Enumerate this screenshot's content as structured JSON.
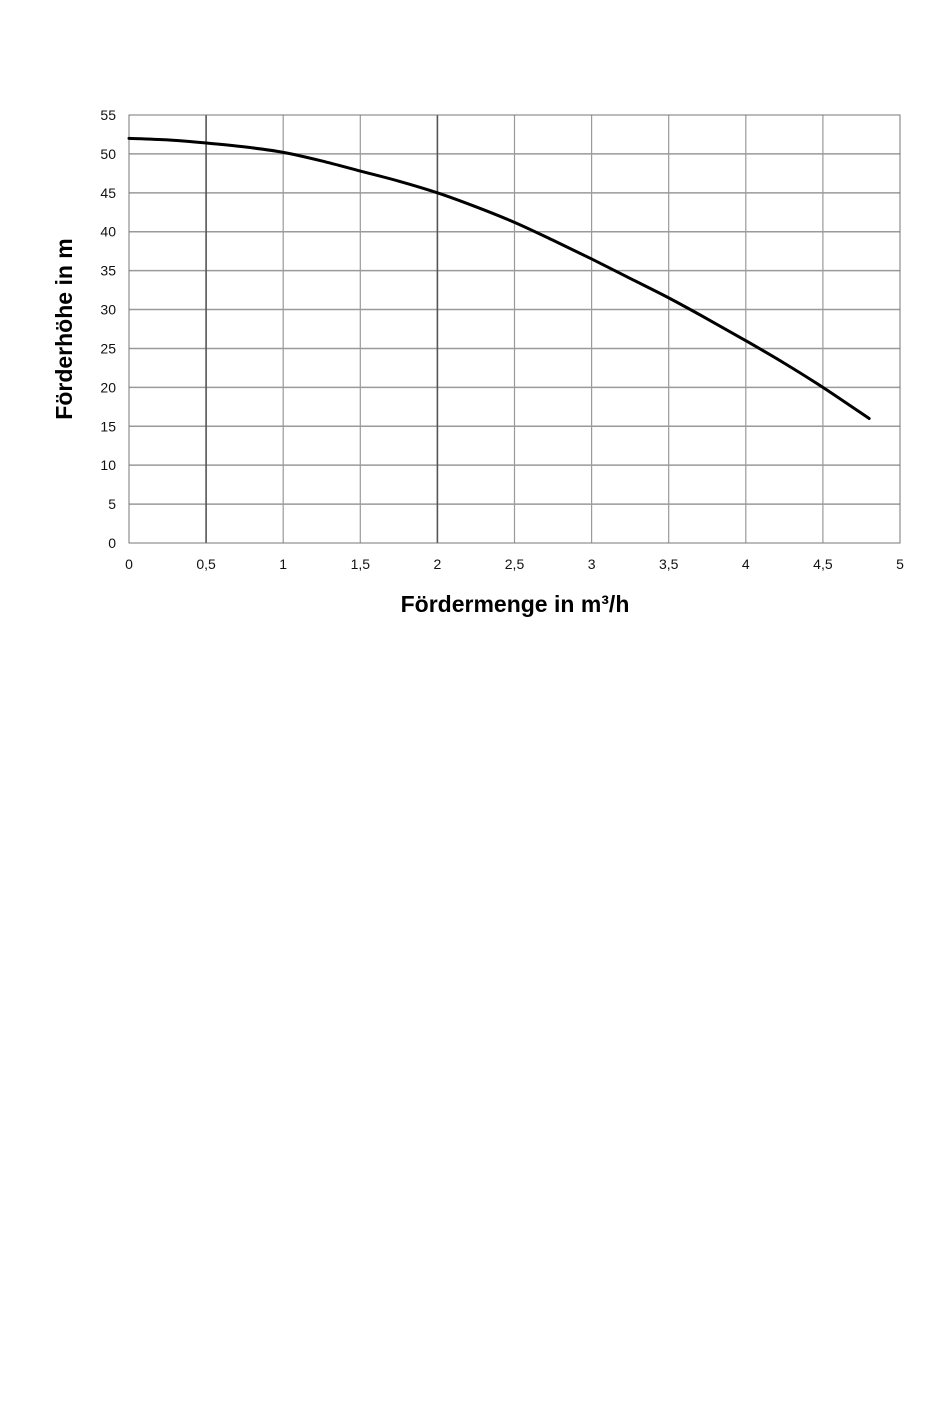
{
  "chart_data": {
    "type": "line",
    "title": "",
    "xlabel": "Fördermenge in m³/h",
    "ylabel": "Förderhöhe in m",
    "xlim": [
      0,
      5
    ],
    "ylim": [
      0,
      55
    ],
    "grid": true,
    "legend": "none",
    "x_ticks": [
      "0",
      "0,5",
      "1",
      "1,5",
      "2",
      "2,5",
      "3",
      "3,5",
      "4",
      "4,5",
      "5"
    ],
    "y_ticks": [
      "0",
      "5",
      "10",
      "15",
      "20",
      "25",
      "30",
      "35",
      "40",
      "45",
      "50",
      "55"
    ],
    "series": [
      {
        "x": [
          0,
          0.25,
          0.5,
          0.75,
          1,
          1.25,
          1.5,
          1.75,
          2,
          2.25,
          2.5,
          2.75,
          3,
          3.25,
          3.5,
          3.75,
          4,
          4.25,
          4.5,
          4.8
        ],
        "y": [
          52,
          51.8,
          51.4,
          50.9,
          50.2,
          49.1,
          47.8,
          46.5,
          45,
          43.2,
          41.2,
          38.9,
          36.5,
          34,
          31.5,
          28.8,
          26,
          23.1,
          20,
          16
        ]
      }
    ],
    "colors": {
      "line": "#000000",
      "grid": "#9a9a9a",
      "grid_major": "#555555"
    }
  }
}
